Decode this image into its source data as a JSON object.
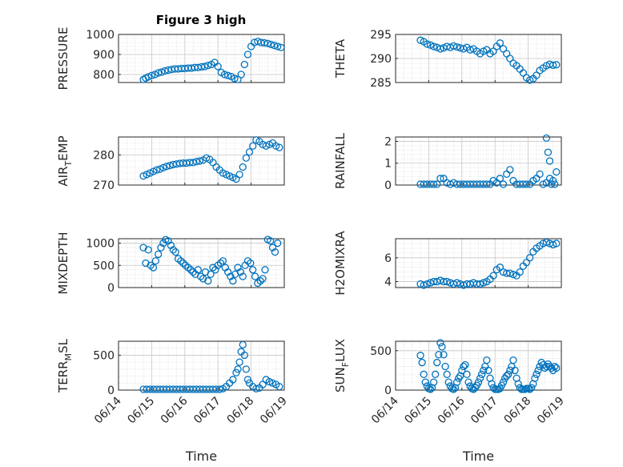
{
  "figure_title": "Figure 3 high",
  "colors": {
    "marker": "#0072bd",
    "axis": "#262626"
  },
  "chart_data": [
    {
      "type": "scatter",
      "title": "Figure 3 high",
      "ylabel": "PRESSURE",
      "xlabel": "",
      "ylim": [
        760,
        1000
      ],
      "yticks": [
        800,
        900,
        1000
      ],
      "xlim": [
        "06/14",
        "06/19"
      ],
      "xticks": [
        "06/14",
        "06/15",
        "06/16",
        "06/17",
        "06/18",
        "06/19"
      ],
      "grid": true,
      "series": [
        {
          "x": [
            14.75,
            14.82,
            14.9,
            15.0,
            15.1,
            15.2,
            15.3,
            15.4,
            15.5,
            15.6,
            15.7,
            15.8,
            15.9,
            16.0,
            16.1,
            16.2,
            16.3,
            16.4,
            16.5,
            16.6,
            16.7,
            16.8,
            16.9,
            17.0,
            17.1,
            17.2,
            17.3,
            17.4,
            17.5,
            17.6,
            17.7,
            17.8,
            17.9,
            18.0,
            18.1,
            18.2,
            18.3,
            18.4,
            18.5,
            18.6,
            18.7,
            18.8,
            18.9
          ],
          "y": [
            775,
            782,
            788,
            795,
            800,
            808,
            812,
            818,
            822,
            825,
            828,
            828,
            830,
            830,
            832,
            832,
            835,
            835,
            838,
            840,
            845,
            850,
            860,
            840,
            810,
            800,
            795,
            790,
            780,
            775,
            800,
            850,
            900,
            940,
            960,
            965,
            960,
            958,
            955,
            950,
            945,
            940,
            935
          ]
        }
      ]
    },
    {
      "type": "scatter",
      "ylabel": "THETA",
      "xlabel": "",
      "ylim": [
        285,
        295
      ],
      "yticks": [
        285,
        290,
        295
      ],
      "xlim": [
        "06/14",
        "06/19"
      ],
      "xticks": [
        "06/14",
        "06/15",
        "06/16",
        "06/17",
        "06/18",
        "06/19"
      ],
      "grid": true,
      "series": [
        {
          "x": [
            14.75,
            14.85,
            14.95,
            15.05,
            15.15,
            15.25,
            15.35,
            15.45,
            15.55,
            15.65,
            15.75,
            15.85,
            15.95,
            16.05,
            16.15,
            16.25,
            16.35,
            16.45,
            16.55,
            16.65,
            16.75,
            16.85,
            16.95,
            17.05,
            17.15,
            17.25,
            17.35,
            17.45,
            17.55,
            17.65,
            17.75,
            17.85,
            17.95,
            18.05,
            18.15,
            18.25,
            18.35,
            18.45,
            18.55,
            18.65,
            18.75,
            18.85
          ],
          "y": [
            293.8,
            293.5,
            293.0,
            292.8,
            292.5,
            292.3,
            292.0,
            292.2,
            292.5,
            292.3,
            292.6,
            292.4,
            292.2,
            292.0,
            292.3,
            291.8,
            292.0,
            291.5,
            291.0,
            291.5,
            291.8,
            291.0,
            291.5,
            292.5,
            293.2,
            292.0,
            291.0,
            290.0,
            289.0,
            288.5,
            287.8,
            287.0,
            286.0,
            285.5,
            285.8,
            286.5,
            287.5,
            288.0,
            288.5,
            288.8,
            288.6,
            288.7
          ]
        }
      ]
    },
    {
      "type": "scatter",
      "ylabel": "AIR_TEMP",
      "xlabel": "",
      "ylim": [
        270,
        286
      ],
      "yticks": [
        270,
        280
      ],
      "xlim": [
        "06/14",
        "06/19"
      ],
      "xticks": [
        "06/14",
        "06/15",
        "06/16",
        "06/17",
        "06/18",
        "06/19"
      ],
      "grid": true,
      "series": [
        {
          "x": [
            14.75,
            14.85,
            14.95,
            15.05,
            15.15,
            15.25,
            15.35,
            15.45,
            15.55,
            15.65,
            15.75,
            15.85,
            15.95,
            16.05,
            16.15,
            16.25,
            16.35,
            16.45,
            16.55,
            16.65,
            16.75,
            16.85,
            16.95,
            17.05,
            17.15,
            17.25,
            17.35,
            17.45,
            17.55,
            17.65,
            17.75,
            17.85,
            17.95,
            18.05,
            18.15,
            18.25,
            18.35,
            18.45,
            18.55,
            18.65,
            18.75,
            18.85
          ],
          "y": [
            273.0,
            273.5,
            274.0,
            274.5,
            275.0,
            275.3,
            275.8,
            276.2,
            276.5,
            276.8,
            277.0,
            277.2,
            277.3,
            277.3,
            277.5,
            277.5,
            277.8,
            278.0,
            278.3,
            279.0,
            278.5,
            277.5,
            276.0,
            275.0,
            274.0,
            273.5,
            273.0,
            272.5,
            272.0,
            273.5,
            276.0,
            279.0,
            281.0,
            283.0,
            285.0,
            284.5,
            283.5,
            283.0,
            283.5,
            284.0,
            283.0,
            282.5
          ]
        }
      ]
    },
    {
      "type": "scatter",
      "ylabel": "RAINFALL",
      "xlabel": "",
      "ylim": [
        0,
        2.2
      ],
      "yticks": [
        0,
        1,
        2
      ],
      "xlim": [
        "06/14",
        "06/19"
      ],
      "xticks": [
        "06/14",
        "06/15",
        "06/16",
        "06/17",
        "06/18",
        "06/19"
      ],
      "grid": true,
      "series": [
        {
          "x": [
            14.75,
            14.85,
            14.95,
            15.05,
            15.15,
            15.25,
            15.35,
            15.45,
            15.55,
            15.65,
            15.75,
            15.85,
            15.95,
            16.05,
            16.15,
            16.25,
            16.35,
            16.45,
            16.55,
            16.65,
            16.75,
            16.85,
            16.95,
            17.05,
            17.15,
            17.25,
            17.35,
            17.45,
            17.55,
            17.65,
            17.75,
            17.85,
            17.95,
            18.05,
            18.15,
            18.25,
            18.35,
            18.45,
            18.55,
            18.65,
            18.75,
            18.85,
            18.55,
            18.6,
            18.65,
            18.7,
            18.8
          ],
          "y": [
            0,
            0,
            0,
            0,
            0,
            0,
            0.3,
            0.3,
            0.1,
            0,
            0.1,
            0,
            0,
            0,
            0,
            0,
            0,
            0,
            0,
            0,
            0,
            0,
            0.2,
            0.1,
            0.3,
            0,
            0.5,
            0.7,
            0.2,
            0,
            0,
            0,
            0,
            0,
            0.2,
            0.3,
            0.5,
            0,
            0.1,
            0.3,
            0.2,
            0.6,
            2.15,
            1.5,
            1.1,
            0,
            0
          ]
        }
      ]
    },
    {
      "type": "scatter",
      "ylabel": "MIXDEPTH",
      "xlabel": "",
      "ylim": [
        0,
        1100
      ],
      "yticks": [
        0,
        500,
        1000
      ],
      "xlim": [
        "06/14",
        "06/19"
      ],
      "xticks": [
        "06/14",
        "06/15",
        "06/16",
        "06/17",
        "06/18",
        "06/19"
      ],
      "grid": true,
      "series": [
        {
          "x": [
            14.75,
            14.82,
            14.9,
            14.97,
            15.05,
            15.12,
            15.2,
            15.28,
            15.35,
            15.42,
            15.5,
            15.58,
            15.65,
            15.72,
            15.8,
            15.88,
            15.95,
            16.02,
            16.1,
            16.18,
            16.25,
            16.32,
            16.4,
            16.48,
            16.55,
            16.62,
            16.7,
            16.78,
            16.85,
            16.92,
            17.0,
            17.08,
            17.15,
            17.22,
            17.3,
            17.38,
            17.45,
            17.52,
            17.6,
            17.68,
            17.75,
            17.82,
            17.9,
            17.98,
            18.05,
            18.12,
            18.2,
            18.28,
            18.35,
            18.42,
            18.5,
            18.58,
            18.65,
            18.72,
            18.8
          ],
          "y": [
            900,
            550,
            850,
            500,
            450,
            600,
            750,
            900,
            1000,
            1080,
            1050,
            950,
            850,
            800,
            650,
            600,
            550,
            500,
            450,
            400,
            350,
            300,
            400,
            250,
            200,
            350,
            150,
            300,
            450,
            400,
            500,
            550,
            600,
            450,
            350,
            250,
            150,
            300,
            450,
            350,
            250,
            500,
            600,
            550,
            400,
            250,
            100,
            150,
            200,
            400,
            1100,
            1050,
            900,
            800,
            1000
          ]
        }
      ]
    },
    {
      "type": "scatter",
      "ylabel": "H2OMIXRA",
      "xlabel": "",
      "ylim": [
        3.5,
        7.6
      ],
      "yticks": [
        4,
        6
      ],
      "xlim": [
        "06/14",
        "06/19"
      ],
      "xticks": [
        "06/14",
        "06/15",
        "06/16",
        "06/17",
        "06/18",
        "06/19"
      ],
      "grid": true,
      "series": [
        {
          "x": [
            14.75,
            14.85,
            14.95,
            15.05,
            15.15,
            15.25,
            15.35,
            15.45,
            15.55,
            15.65,
            15.75,
            15.85,
            15.95,
            16.05,
            16.15,
            16.25,
            16.35,
            16.45,
            16.55,
            16.65,
            16.75,
            16.85,
            16.95,
            17.05,
            17.15,
            17.25,
            17.35,
            17.45,
            17.55,
            17.65,
            17.75,
            17.85,
            17.95,
            18.05,
            18.15,
            18.25,
            18.35,
            18.45,
            18.55,
            18.65,
            18.75,
            18.85
          ],
          "y": [
            3.8,
            3.7,
            3.8,
            3.9,
            4.0,
            4.0,
            4.1,
            4.0,
            4.0,
            3.9,
            3.8,
            3.9,
            3.8,
            3.7,
            3.8,
            3.8,
            3.9,
            3.8,
            3.8,
            3.9,
            4.0,
            4.2,
            4.5,
            5.0,
            5.2,
            4.8,
            4.7,
            4.7,
            4.6,
            4.5,
            4.8,
            5.3,
            5.6,
            6.0,
            6.5,
            6.8,
            7.0,
            7.2,
            7.3,
            7.2,
            7.1,
            7.2
          ]
        }
      ]
    },
    {
      "type": "scatter",
      "ylabel": "TERR_MSL",
      "xlabel": "Time",
      "ylim": [
        0,
        700
      ],
      "yticks": [
        0,
        500
      ],
      "xlim": [
        "06/14",
        "06/19"
      ],
      "xticks": [
        "06/14",
        "06/15",
        "06/16",
        "06/17",
        "06/18",
        "06/19"
      ],
      "grid": true,
      "series": [
        {
          "x": [
            14.75,
            14.85,
            14.95,
            15.05,
            15.15,
            15.25,
            15.35,
            15.45,
            15.55,
            15.65,
            15.75,
            15.85,
            15.95,
            16.05,
            16.15,
            16.25,
            16.35,
            16.45,
            16.55,
            16.65,
            16.75,
            16.85,
            16.95,
            17.05,
            17.15,
            17.25,
            17.35,
            17.45,
            17.55,
            17.6,
            17.65,
            17.7,
            17.75,
            17.8,
            17.85,
            17.9,
            17.95,
            18.05,
            18.15,
            18.25,
            18.35,
            18.45,
            18.55,
            18.65,
            18.75,
            18.85
          ],
          "y": [
            0,
            0,
            0,
            0,
            0,
            0,
            0,
            0,
            0,
            0,
            0,
            0,
            0,
            0,
            0,
            0,
            0,
            0,
            0,
            0,
            0,
            0,
            0,
            0,
            20,
            50,
            100,
            150,
            250,
            300,
            400,
            550,
            650,
            500,
            300,
            150,
            100,
            50,
            20,
            30,
            80,
            150,
            120,
            100,
            80,
            50
          ]
        }
      ]
    },
    {
      "type": "scatter",
      "ylabel": "SUN_FLUX",
      "xlabel": "Time",
      "ylim": [
        0,
        620
      ],
      "yticks": [
        0,
        500
      ],
      "xlim": [
        "06/14",
        "06/19"
      ],
      "xticks": [
        "06/14",
        "06/15",
        "06/16",
        "06/17",
        "06/18",
        "06/19"
      ],
      "grid": true,
      "series": [
        {
          "x": [
            14.75,
            14.8,
            14.85,
            14.9,
            14.95,
            15.0,
            15.05,
            15.1,
            15.15,
            15.2,
            15.25,
            15.3,
            15.35,
            15.4,
            15.45,
            15.5,
            15.55,
            15.6,
            15.65,
            15.7,
            15.75,
            15.8,
            15.85,
            15.9,
            15.95,
            16.0,
            16.05,
            16.1,
            16.15,
            16.2,
            16.25,
            16.3,
            16.35,
            16.4,
            16.45,
            16.5,
            16.55,
            16.6,
            16.65,
            16.7,
            16.75,
            16.8,
            16.85,
            16.9,
            16.95,
            17.0,
            17.05,
            17.1,
            17.15,
            17.2,
            17.25,
            17.3,
            17.35,
            17.4,
            17.45,
            17.5,
            17.55,
            17.6,
            17.65,
            17.7,
            17.75,
            17.8,
            17.85,
            17.9,
            17.95,
            18.0,
            18.05,
            18.1,
            18.15,
            18.2,
            18.25,
            18.3,
            18.35,
            18.4,
            18.45,
            18.5,
            18.55,
            18.6,
            18.65,
            18.7,
            18.75,
            18.8,
            18.85
          ],
          "y": [
            440,
            350,
            200,
            100,
            50,
            20,
            10,
            30,
            100,
            200,
            350,
            450,
            600,
            550,
            450,
            300,
            200,
            100,
            50,
            20,
            10,
            30,
            100,
            150,
            180,
            250,
            300,
            320,
            200,
            100,
            50,
            20,
            10,
            30,
            60,
            100,
            150,
            200,
            250,
            300,
            380,
            250,
            150,
            80,
            30,
            10,
            5,
            10,
            20,
            60,
            100,
            150,
            180,
            200,
            250,
            300,
            380,
            250,
            150,
            80,
            30,
            10,
            5,
            10,
            20,
            20,
            10,
            30,
            80,
            150,
            200,
            250,
            300,
            350,
            320,
            280,
            300,
            330,
            300,
            280,
            250,
            300,
            280
          ]
        }
      ]
    }
  ]
}
